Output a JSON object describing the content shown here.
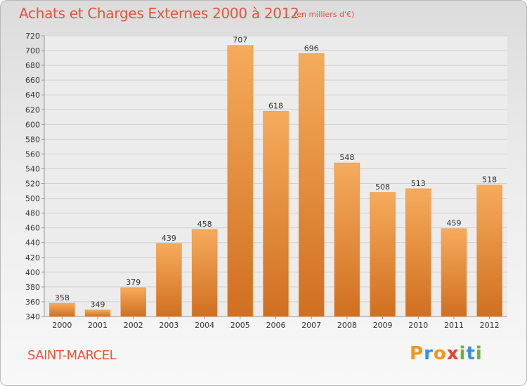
{
  "chart_data": {
    "type": "bar",
    "title": "Achats et Charges Externes 2000 à 2012",
    "subtitle": "(en milliers d'€)",
    "categories": [
      "2000",
      "2001",
      "2002",
      "2003",
      "2004",
      "2005",
      "2006",
      "2007",
      "2008",
      "2009",
      "2010",
      "2011",
      "2012"
    ],
    "values": [
      358,
      349,
      379,
      439,
      458,
      707,
      618,
      696,
      548,
      508,
      513,
      459,
      518
    ],
    "ylim": [
      340,
      720
    ],
    "yticks": [
      340,
      360,
      380,
      400,
      420,
      440,
      460,
      480,
      500,
      520,
      540,
      560,
      580,
      600,
      620,
      640,
      660,
      680,
      700,
      720
    ],
    "grid": true,
    "bar_color": "#ef8f35",
    "bar_color_light": "#f6ab5c",
    "bar_color_dark": "#d06f20"
  },
  "header": {
    "title": "Achats et Charges Externes 2000 à 2012",
    "subtitle": "(en milliers d'€)"
  },
  "footer": {
    "commune": "SAINT-MARCEL",
    "logo": {
      "p": "P",
      "r": "r",
      "o": "o",
      "x": "x",
      "i1": "i",
      "t": "t",
      "i2": "i"
    }
  }
}
